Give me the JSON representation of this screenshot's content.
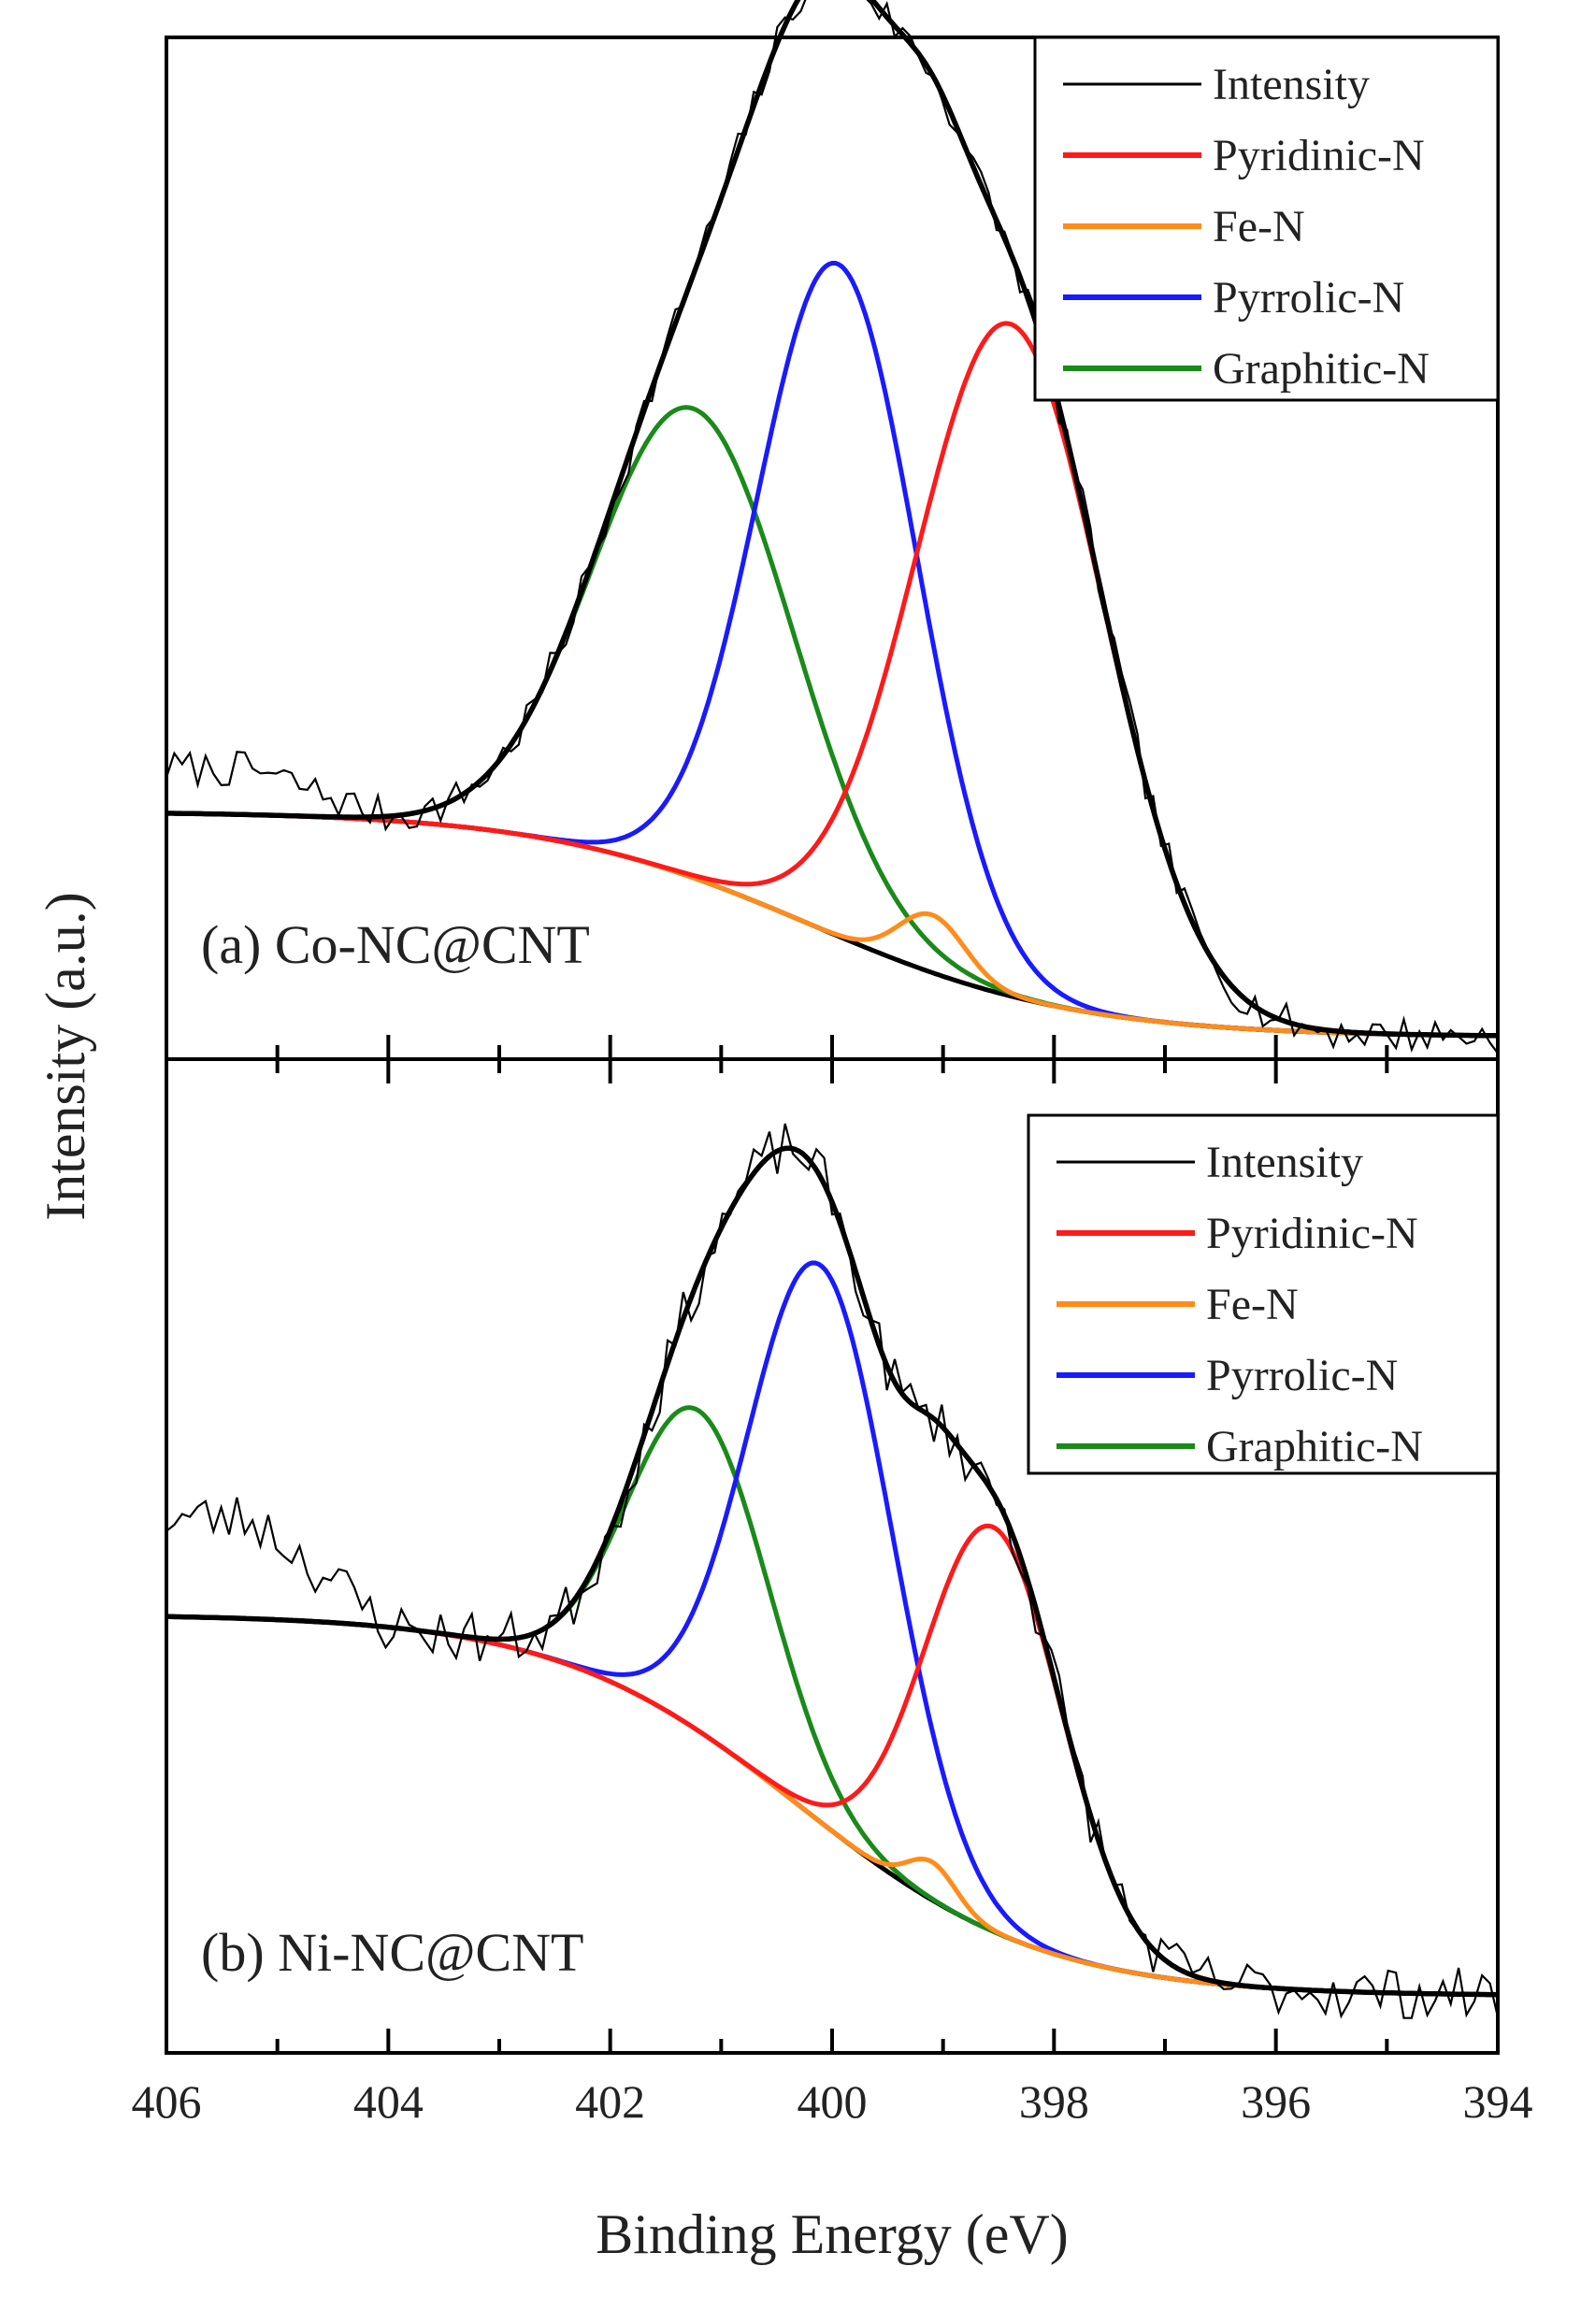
{
  "chart_data": {
    "type": "line",
    "xlabel": "Binding Energy (eV)",
    "ylabel": "Intensity (a.u.)",
    "xlim": [
      406,
      394
    ],
    "x_reversed": true,
    "xticks": [
      406,
      404,
      402,
      400,
      398,
      396,
      394
    ],
    "yticks_shown": false,
    "legend_position": "top-right",
    "series_colors": {
      "Intensity": "#000000",
      "Pyridinic-N": "#ff1a1a",
      "Fe-N": "#ff8c1a",
      "Pyrrolic-N": "#1a1aff",
      "Graphitic-N": "#1a8a1a"
    },
    "panels": [
      {
        "label": "(a) Co-NC@CNT",
        "legend": [
          "Intensity",
          "Pyridinic-N",
          "Fe-N",
          "Pyrrolic-N",
          "Graphitic-N"
        ],
        "baseline": {
          "high": 0.0,
          "low": -0.25,
          "center": 400.2,
          "width": 1.2
        },
        "components": [
          {
            "name": "Pyridinic-N",
            "center": 398.4,
            "amp": 0.745,
            "sigma": 0.85
          },
          {
            "name": "Fe-N",
            "center": 399.1,
            "amp": 0.064,
            "sigma": 0.3
          },
          {
            "name": "Pyrrolic-N",
            "center": 399.95,
            "amp": 0.745,
            "sigma": 0.72
          },
          {
            "name": "Graphitic-N",
            "center": 401.25,
            "amp": 0.52,
            "sigma": 0.9
          }
        ],
        "noise": {
          "amp": 0.02,
          "seed": 7,
          "left_level": 0.05
        }
      },
      {
        "label": "(b) Ni-NC@CNT",
        "legend": [
          "Intensity",
          "Pyridinic-N",
          "Fe-N",
          "Pyrrolic-N",
          "Graphitic-N"
        ],
        "baseline": {
          "high": 0.0,
          "low": -0.5,
          "center": 400.3,
          "width": 1.1
        },
        "components": [
          {
            "name": "Pyridinic-N",
            "center": 398.55,
            "amp": 0.53,
            "sigma": 0.62
          },
          {
            "name": "Fe-N",
            "center": 399.1,
            "amp": 0.05,
            "sigma": 0.22
          },
          {
            "name": "Pyrrolic-N",
            "center": 400.1,
            "amp": 0.73,
            "sigma": 0.65
          },
          {
            "name": "Graphitic-N",
            "center": 401.2,
            "amp": 0.42,
            "sigma": 0.63
          }
        ],
        "noise": {
          "amp": 0.035,
          "seed": 23,
          "left_level": 0.13
        }
      }
    ]
  }
}
